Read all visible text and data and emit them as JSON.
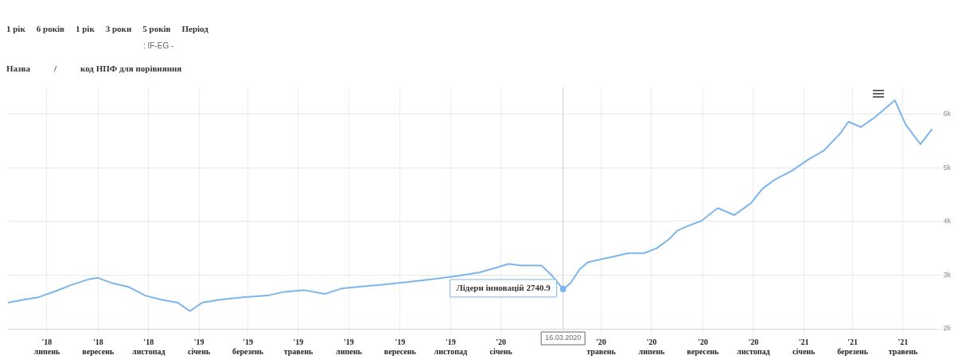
{
  "chart_data": {
    "type": "line",
    "legend": false,
    "grid": true,
    "marker": "none",
    "annotations": [
      "1 рік",
      "6 років",
      "1 рік",
      "3 роки",
      "5 років",
      "Період",
      ": IF-EG -",
      "Назва",
      "/",
      "код НПФ для порівняння",
      {
        "text": "Лідери інновацій 2740.9",
        "x": "2020-03-16",
        "y": 2740.9
      }
    ],
    "xlim": [
      "2018-05-15",
      "2021-06-08"
    ],
    "xticks": [
      {
        "value": "2018-07-01",
        "label": "'18 липень"
      },
      {
        "value": "2018-09-01",
        "label": "'18 вересень"
      },
      {
        "value": "2018-11-01",
        "label": "'18 листопад"
      },
      {
        "value": "2019-01-01",
        "label": "'19 січень"
      },
      {
        "value": "2019-03-01",
        "label": "'19 березень"
      },
      {
        "value": "2019-05-01",
        "label": "'19 травень"
      },
      {
        "value": "2019-07-01",
        "label": "'19 липень"
      },
      {
        "value": "2019-09-01",
        "label": "'19 вересень"
      },
      {
        "value": "2019-11-01",
        "label": "'19 листопад"
      },
      {
        "value": "2020-01-01",
        "label": "'20 січень"
      },
      {
        "value": "2020-05-01",
        "label": "'20 травень"
      },
      {
        "value": "2020-07-01",
        "label": "'20 липень"
      },
      {
        "value": "2020-09-01",
        "label": "'20 вересень"
      },
      {
        "value": "2020-11-01",
        "label": "'20 листопад"
      },
      {
        "value": "2021-01-01",
        "label": "'21 січень"
      },
      {
        "value": "2021-03-01",
        "label": "'21 березень"
      },
      {
        "value": "2021-05-01",
        "label": "'21 травень"
      }
    ],
    "ylim": [
      2000,
      6500
    ],
    "yticks": [
      {
        "value": 2000,
        "label": "2k"
      },
      {
        "value": 3000,
        "label": "3k"
      },
      {
        "value": 4000,
        "label": "4k"
      },
      {
        "value": 5000,
        "label": "5k"
      },
      {
        "value": 6000,
        "label": "6k"
      }
    ],
    "ref_lines": [
      {
        "axis": "x",
        "value": "2020-03-16",
        "label": "16.03.2020",
        "color": "#cccccc"
      }
    ],
    "series": [
      {
        "color": "#7cb5ec",
        "x": [
          "2018-05-15",
          "2018-06-02",
          "2018-06-21",
          "2018-07-11",
          "2018-07-31",
          "2018-08-20",
          "2018-09-01",
          "2018-09-18",
          "2018-10-08",
          "2018-10-28",
          "2018-11-17",
          "2018-12-06",
          "2018-12-21",
          "2019-01-05",
          "2019-01-25",
          "2019-02-23",
          "2019-03-25",
          "2019-04-14",
          "2019-05-08",
          "2019-06-02",
          "2019-06-22",
          "2019-07-11",
          "2019-08-10",
          "2019-09-09",
          "2019-10-08",
          "2019-11-07",
          "2019-12-06",
          "2019-12-26",
          "2020-01-10",
          "2020-01-25",
          "2020-02-09",
          "2020-02-19",
          "2020-03-02",
          "2020-03-16",
          "2020-03-25",
          "2020-04-05",
          "2020-04-15",
          "2020-05-14",
          "2020-06-03",
          "2020-06-22",
          "2020-07-07",
          "2020-07-22",
          "2020-08-01",
          "2020-08-16",
          "2020-08-30",
          "2020-09-19",
          "2020-10-09",
          "2020-10-29",
          "2020-11-12",
          "2020-11-27",
          "2020-12-17",
          "2021-01-06",
          "2021-01-25",
          "2021-02-14",
          "2021-02-24",
          "2021-03-11",
          "2021-03-26",
          "2021-04-05",
          "2021-04-21",
          "2021-05-04",
          "2021-05-22",
          "2021-06-05"
        ],
        "values": [
          2490,
          2540,
          2590,
          2700,
          2820,
          2920,
          2950,
          2850,
          2780,
          2620,
          2540,
          2490,
          2330,
          2490,
          2540,
          2590,
          2620,
          2690,
          2720,
          2650,
          2750,
          2780,
          2820,
          2870,
          2920,
          2980,
          3050,
          3140,
          3210,
          3180,
          3180,
          3180,
          3000,
          2740.9,
          2850,
          3110,
          3240,
          3340,
          3410,
          3410,
          3500,
          3670,
          3830,
          3930,
          4010,
          4250,
          4120,
          4340,
          4610,
          4780,
          4940,
          5150,
          5320,
          5640,
          5860,
          5760,
          5920,
          6050,
          6260,
          5810,
          5440,
          5720
        ]
      }
    ]
  }
}
